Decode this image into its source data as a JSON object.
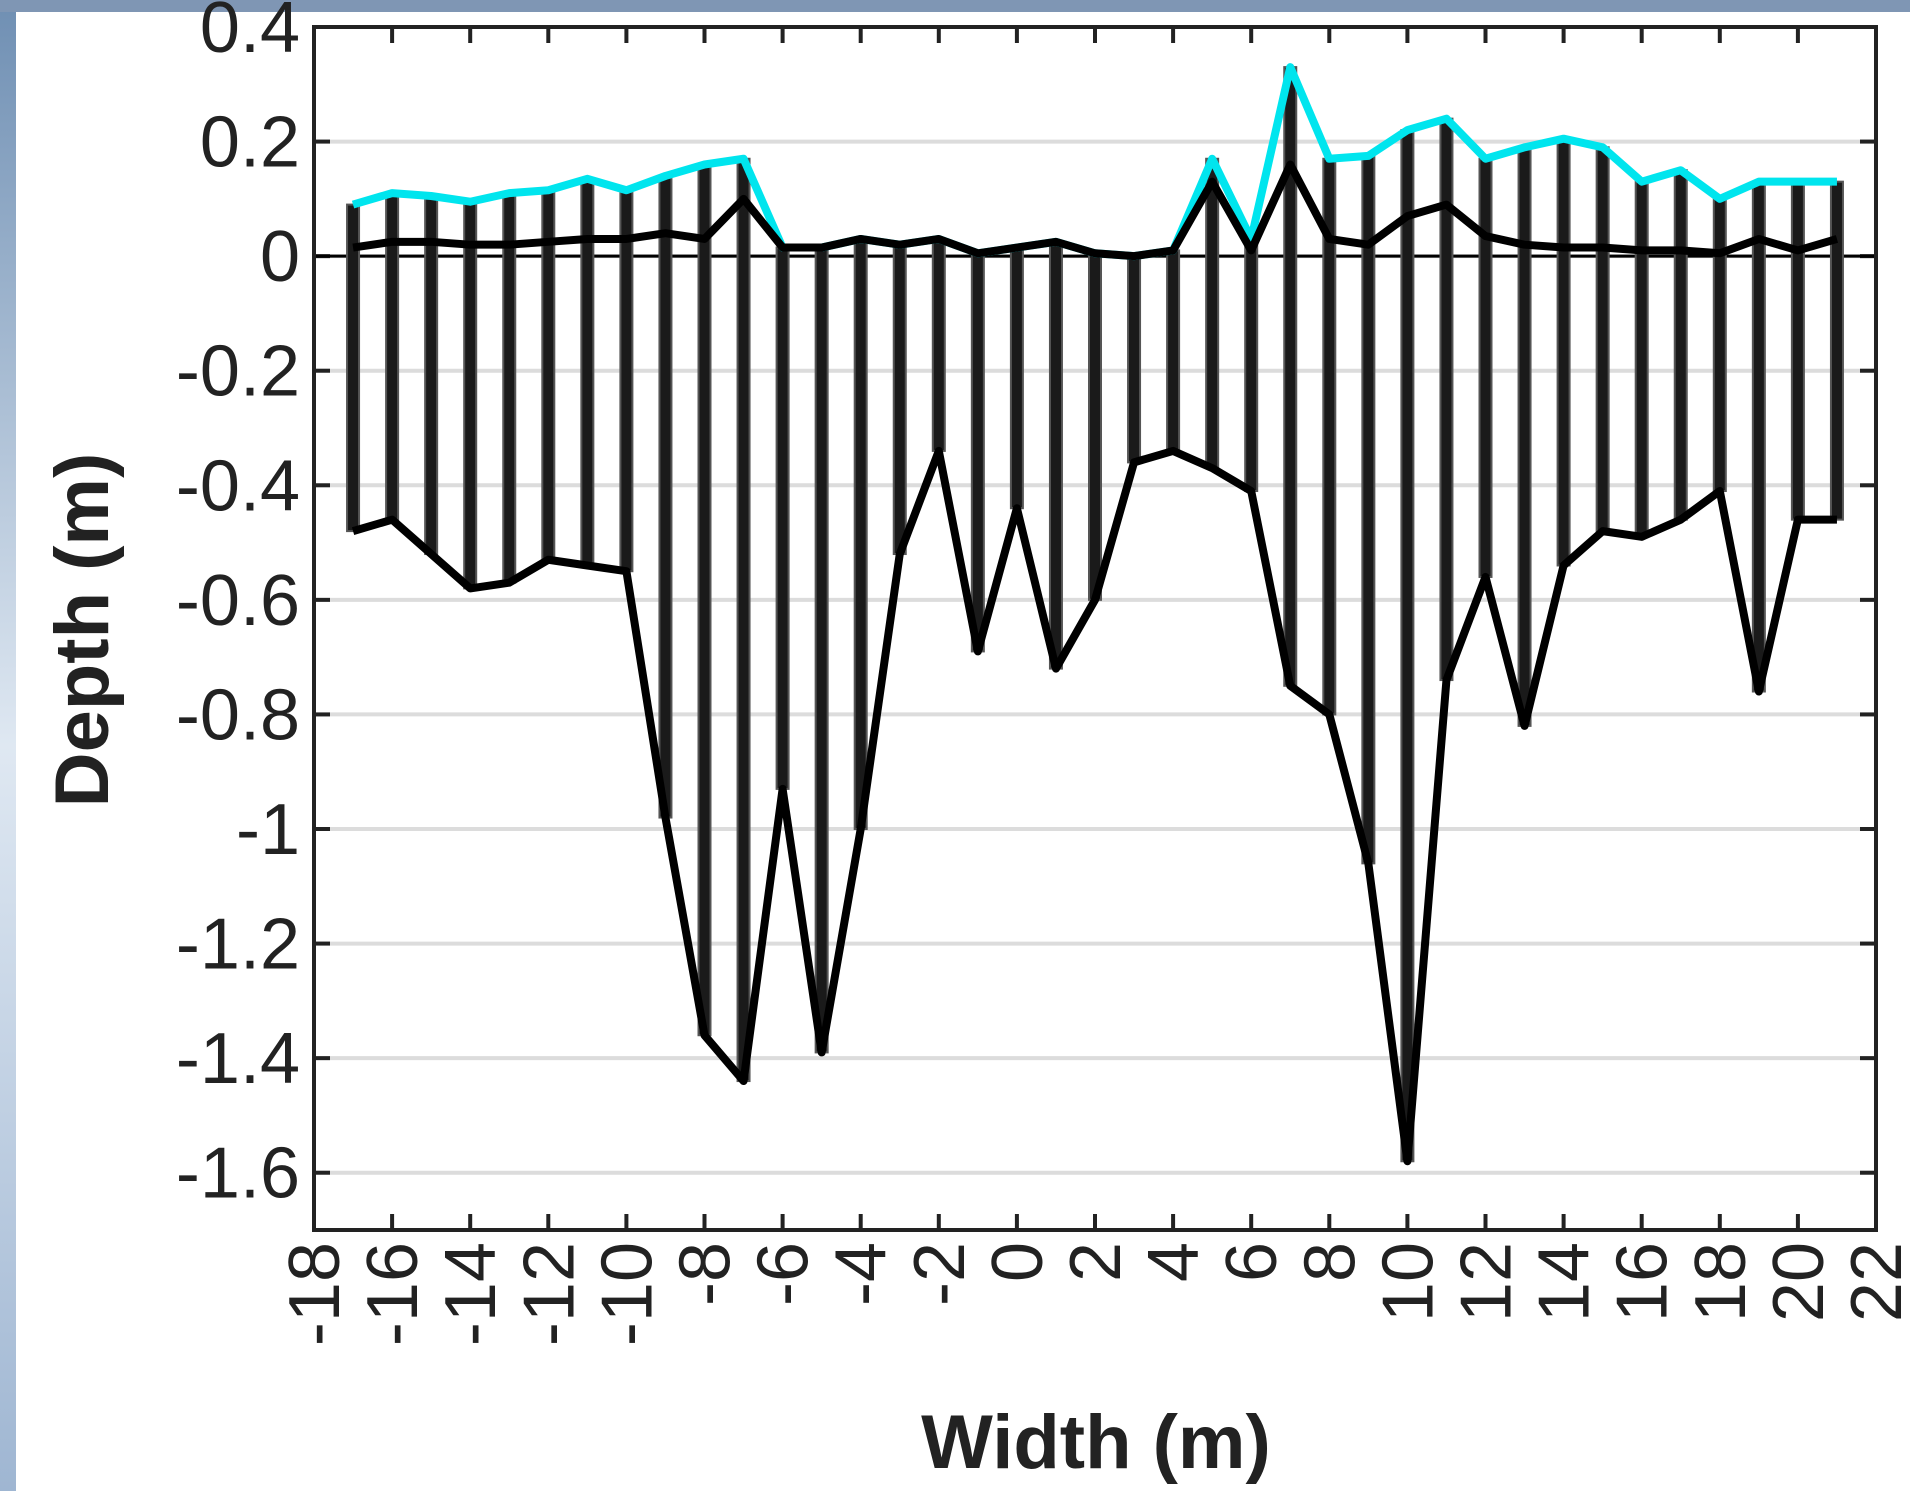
{
  "chart_data": {
    "type": "line",
    "x_label": "Width (m)",
    "y_label": "Depth (m)",
    "x": [
      -17,
      -16,
      -15,
      -14,
      -13,
      -12,
      -11,
      -10,
      -9,
      -8,
      -7,
      -6,
      -5,
      -4,
      -3,
      -2,
      -1,
      0,
      1,
      2,
      3,
      4,
      5,
      6,
      7,
      8,
      9,
      10,
      11,
      12,
      13,
      14,
      15,
      16,
      17,
      18,
      19,
      20,
      21
    ],
    "series": [
      {
        "color": "#00e5ee",
        "values": [
          0.09,
          0.11,
          0.105,
          0.095,
          0.11,
          0.115,
          0.135,
          0.115,
          0.14,
          0.16,
          0.17,
          0.015,
          0.015,
          0.03,
          0.02,
          0.03,
          0.005,
          0.015,
          0.025,
          0.005,
          0.0,
          0.01,
          0.17,
          0.03,
          0.33,
          0.17,
          0.175,
          0.22,
          0.24,
          0.17,
          0.19,
          0.205,
          0.19,
          0.13,
          0.15,
          0.1,
          0.13,
          0.13,
          0.13
        ]
      },
      {
        "color": "#000000",
        "values": [
          0.015,
          0.025,
          0.025,
          0.02,
          0.02,
          0.025,
          0.03,
          0.03,
          0.04,
          0.03,
          0.1,
          0.015,
          0.015,
          0.03,
          0.02,
          0.03,
          0.005,
          0.015,
          0.025,
          0.005,
          0.0,
          0.01,
          0.13,
          0.01,
          0.16,
          0.03,
          0.02,
          0.07,
          0.09,
          0.035,
          0.02,
          0.015,
          0.015,
          0.01,
          0.01,
          0.005,
          0.03,
          0.01,
          0.03
        ]
      },
      {
        "color": "#000000",
        "values": [
          -0.48,
          -0.46,
          -0.52,
          -0.58,
          -0.57,
          -0.53,
          -0.54,
          -0.55,
          -0.98,
          -1.36,
          -1.44,
          -0.93,
          -1.39,
          -1.0,
          -0.52,
          -0.34,
          -0.69,
          -0.44,
          -0.72,
          -0.6,
          -0.36,
          -0.34,
          -0.37,
          -0.41,
          -0.75,
          -0.8,
          -1.06,
          -1.58,
          -0.74,
          -0.56,
          -0.82,
          -0.54,
          -0.48,
          -0.49,
          -0.46,
          -0.41,
          -0.76,
          -0.46,
          -0.46
        ]
      }
    ],
    "xlim": [
      -18,
      22
    ],
    "xticks": [
      -18,
      -16,
      -14,
      -12,
      -10,
      -8,
      -6,
      -4,
      -2,
      0,
      2,
      4,
      6,
      8,
      10,
      12,
      14,
      16,
      18,
      20,
      22
    ],
    "ylim": [
      -1.7,
      0.4
    ],
    "yticks": [
      -1.6,
      -1.4,
      -1.2,
      -1,
      -0.8,
      -0.6,
      -0.4,
      -0.2,
      0,
      0.2,
      0.4
    ],
    "grid": true
  }
}
